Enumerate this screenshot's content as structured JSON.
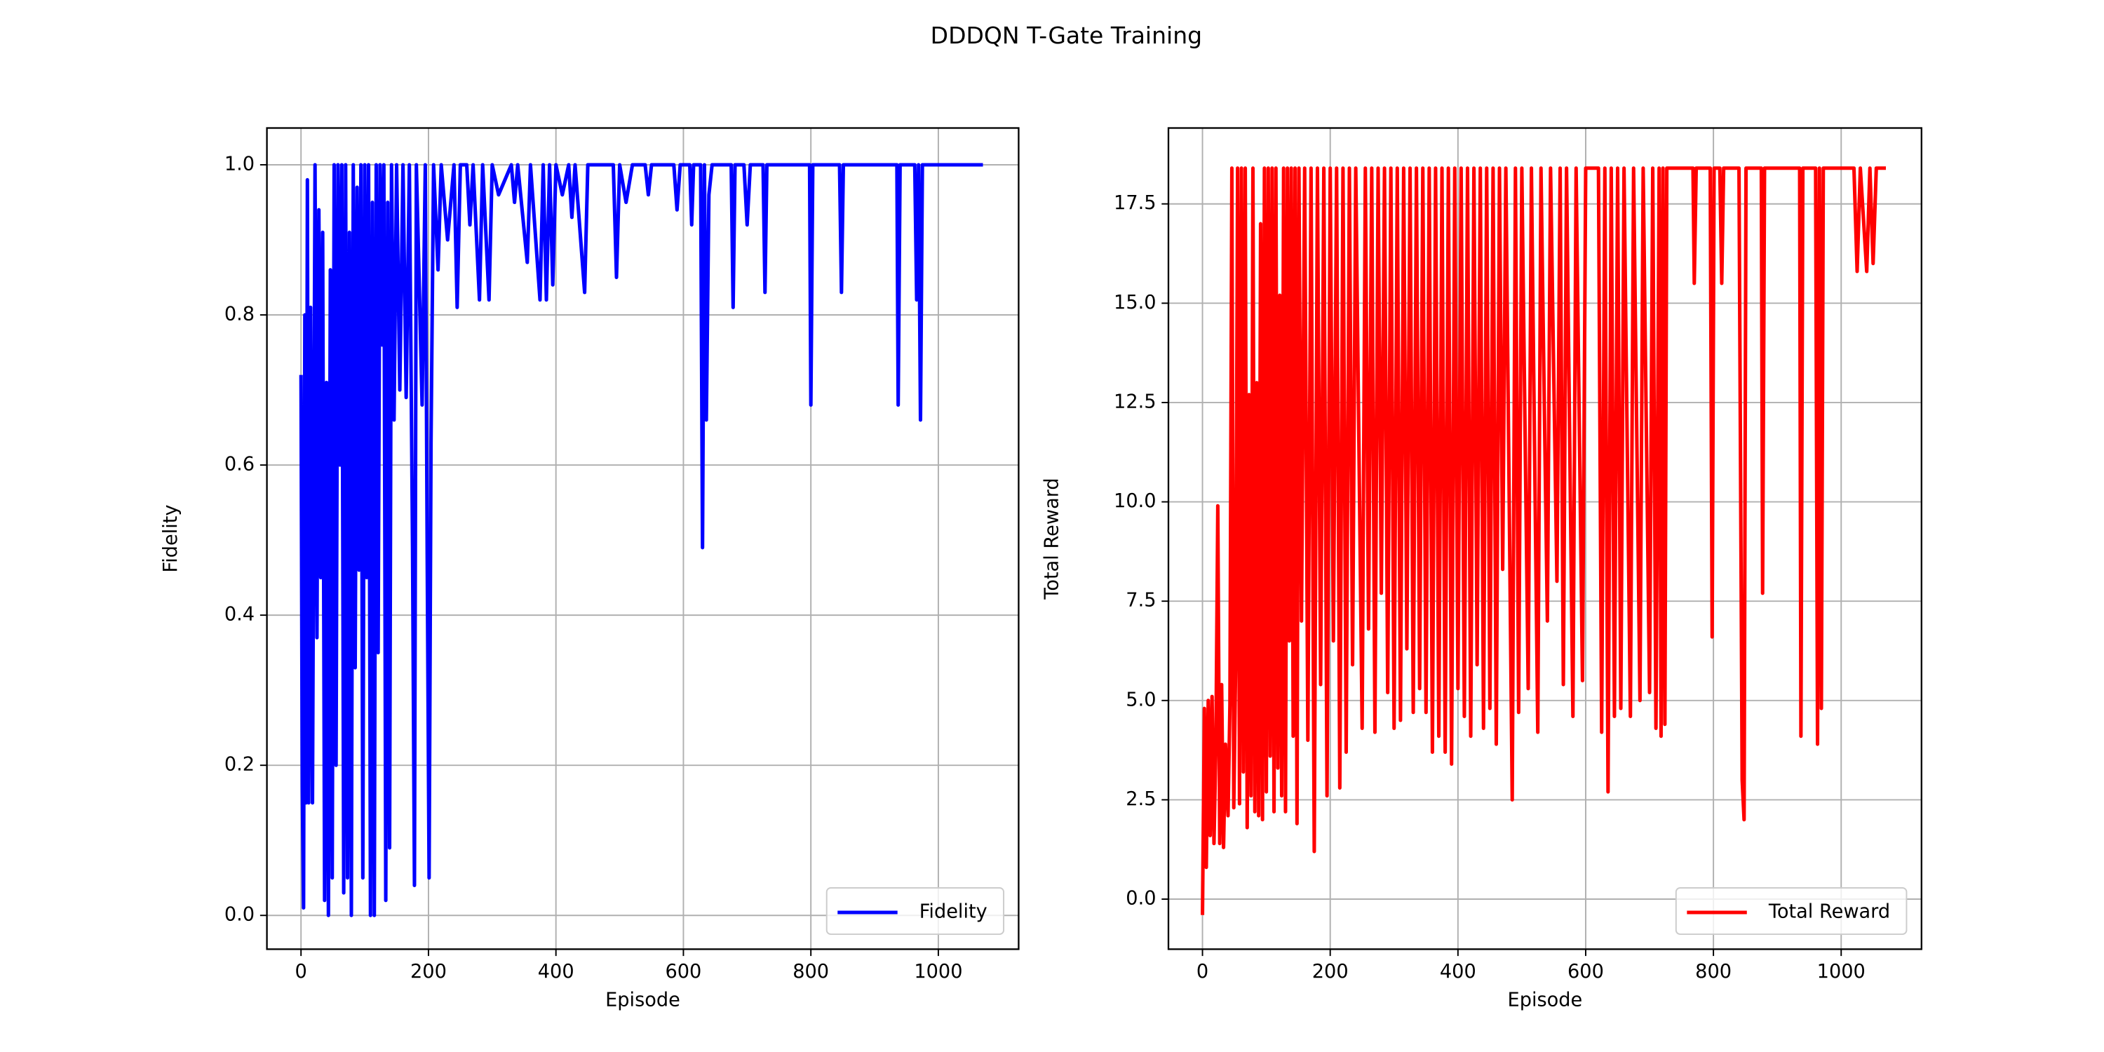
{
  "title": "DDDQN T-Gate Training",
  "chart_data": [
    {
      "type": "line",
      "xlabel": "Episode",
      "ylabel": "Fidelity",
      "xlim": [
        -53.5,
        1126
      ],
      "ylim": [
        -0.045,
        1.049
      ],
      "xticks": [
        0,
        200,
        400,
        600,
        800,
        1000
      ],
      "yticks": [
        {
          "value": 0,
          "label": "0.0"
        },
        0.2,
        0.4,
        0.6,
        0.8,
        {
          "value": 1,
          "label": "1.0"
        }
      ],
      "grid": true,
      "legend": "lower right",
      "x": [
        0,
        2,
        4,
        6,
        8,
        10,
        12,
        15,
        18,
        22,
        25,
        28,
        31,
        34,
        37,
        40,
        43,
        46,
        49,
        52,
        55,
        58,
        61,
        64,
        67,
        70,
        73,
        76,
        79,
        82,
        85,
        88,
        91,
        94,
        97,
        100,
        103,
        106,
        109,
        112,
        115,
        118,
        121,
        124,
        127,
        130,
        133,
        136,
        139,
        142,
        146,
        150,
        155,
        160,
        165,
        170,
        175,
        178,
        181,
        185,
        190,
        195,
        198,
        201,
        204,
        208,
        215,
        220,
        230,
        240,
        245,
        250,
        260,
        265,
        270,
        280,
        285,
        295,
        300,
        310,
        330,
        335,
        340,
        355,
        360,
        375,
        380,
        385,
        390,
        395,
        400,
        410,
        420,
        425,
        430,
        445,
        450,
        490,
        495,
        500,
        510,
        520,
        540,
        545,
        550,
        585,
        590,
        595,
        610,
        613,
        616,
        627,
        630,
        633,
        636,
        640,
        645,
        675,
        678,
        681,
        695,
        700,
        705,
        725,
        728,
        731,
        798,
        800,
        803,
        845,
        848,
        851,
        935,
        937,
        940,
        963,
        966,
        969,
        972,
        975,
        1070
      ],
      "series": [
        {
          "name": "Fidelity",
          "color": "#0000ff",
          "values": [
            0.72,
            0.17,
            0.01,
            0.8,
            0.15,
            0.98,
            0.15,
            0.81,
            0.15,
            1.0,
            0.37,
            0.94,
            0.45,
            0.91,
            0.02,
            0.71,
            0.0,
            0.86,
            0.05,
            1.0,
            0.2,
            1.0,
            0.6,
            1.0,
            0.03,
            1.0,
            0.05,
            0.91,
            0.0,
            1.0,
            0.33,
            0.97,
            0.46,
            1.0,
            0.05,
            1.0,
            0.45,
            1.0,
            0.0,
            0.95,
            0.0,
            1.0,
            0.35,
            1.0,
            0.76,
            1.0,
            0.02,
            0.95,
            0.09,
            1.0,
            0.66,
            1.0,
            0.7,
            1.0,
            0.69,
            1.0,
            0.49,
            0.04,
            1.0,
            0.86,
            0.68,
            1.0,
            0.48,
            0.05,
            0.63,
            1.0,
            0.86,
            1.0,
            0.9,
            1.0,
            0.81,
            1.0,
            1.0,
            0.92,
            1.0,
            0.82,
            1.0,
            0.82,
            1.0,
            0.96,
            1.0,
            0.95,
            1.0,
            0.87,
            1.0,
            0.82,
            1.0,
            0.82,
            1.0,
            0.84,
            1.0,
            0.96,
            1.0,
            0.93,
            1.0,
            0.83,
            1.0,
            1.0,
            0.85,
            1.0,
            0.95,
            1.0,
            1.0,
            0.96,
            1.0,
            1.0,
            0.94,
            1.0,
            1.0,
            0.92,
            1.0,
            1.0,
            0.49,
            1.0,
            0.66,
            0.96,
            1.0,
            1.0,
            0.81,
            1.0,
            1.0,
            0.92,
            1.0,
            1.0,
            0.83,
            1.0,
            1.0,
            0.68,
            1.0,
            1.0,
            0.83,
            1.0,
            1.0,
            0.68,
            1.0,
            1.0,
            0.82,
            1.0,
            0.66,
            1.0,
            1.0
          ]
        }
      ]
    },
    {
      "type": "line",
      "xlabel": "Episode",
      "ylabel": "Total Reward",
      "xlim": [
        -53.3,
        1125.8
      ],
      "ylim": [
        -1.26,
        19.41
      ],
      "xticks": [
        0,
        200,
        400,
        600,
        800,
        1000
      ],
      "yticks": [
        {
          "value": 0,
          "label": "0.0"
        },
        2.5,
        {
          "value": 5,
          "label": "5.0"
        },
        7.5,
        {
          "value": 10,
          "label": "10.0"
        },
        12.5,
        {
          "value": 15,
          "label": "15.0"
        },
        17.5
      ],
      "grid": true,
      "legend": "lower right",
      "x": [
        0,
        3,
        6,
        9,
        12,
        15,
        18,
        21,
        24,
        27,
        30,
        33,
        36,
        40,
        43,
        46,
        49,
        52,
        55,
        58,
        61,
        64,
        67,
        70,
        73,
        76,
        79,
        82,
        85,
        88,
        91,
        94,
        97,
        100,
        103,
        106,
        109,
        112,
        115,
        118,
        121,
        124,
        127,
        130,
        133,
        136,
        139,
        142,
        145,
        148,
        151,
        155,
        160,
        165,
        170,
        175,
        180,
        185,
        190,
        195,
        200,
        205,
        210,
        215,
        220,
        225,
        230,
        235,
        240,
        250,
        255,
        260,
        265,
        270,
        275,
        280,
        285,
        290,
        295,
        300,
        305,
        310,
        315,
        320,
        325,
        330,
        335,
        340,
        345,
        350,
        355,
        360,
        365,
        370,
        375,
        380,
        385,
        390,
        395,
        400,
        405,
        410,
        415,
        420,
        425,
        430,
        435,
        440,
        445,
        450,
        455,
        460,
        465,
        470,
        475,
        485,
        490,
        495,
        500,
        510,
        515,
        525,
        530,
        540,
        545,
        555,
        560,
        565,
        570,
        580,
        585,
        595,
        600,
        620,
        625,
        630,
        635,
        640,
        645,
        650,
        655,
        660,
        670,
        675,
        685,
        690,
        700,
        705,
        710,
        715,
        718,
        721,
        724,
        727,
        768,
        770,
        773,
        795,
        798,
        801,
        810,
        813,
        816,
        840,
        845,
        848,
        851,
        875,
        877,
        880,
        935,
        937,
        940,
        960,
        963,
        966,
        969,
        972,
        1020,
        1025,
        1030,
        1040,
        1045,
        1050,
        1055,
        1070
      ],
      "series": [
        {
          "name": "Total Reward",
          "color": "#ff0000",
          "values": [
            -0.4,
            4.8,
            0.8,
            5.0,
            1.6,
            5.1,
            1.4,
            3.9,
            9.9,
            1.4,
            5.4,
            1.3,
            3.9,
            2.1,
            4.9,
            18.4,
            2.3,
            6.0,
            18.4,
            2.4,
            18.4,
            3.2,
            18.4,
            1.8,
            12.7,
            2.6,
            18.4,
            2.2,
            13.0,
            2.1,
            17.0,
            2.0,
            18.4,
            2.7,
            18.4,
            3.6,
            18.4,
            2.2,
            18.4,
            3.3,
            15.2,
            2.6,
            18.4,
            2.2,
            18.4,
            6.5,
            18.4,
            4.1,
            18.4,
            1.9,
            18.4,
            7.0,
            18.4,
            4.0,
            18.4,
            1.2,
            18.4,
            5.4,
            18.4,
            2.6,
            18.4,
            6.5,
            18.4,
            2.8,
            18.4,
            3.7,
            18.4,
            5.9,
            18.4,
            4.3,
            18.4,
            6.8,
            18.4,
            4.2,
            18.4,
            7.7,
            18.4,
            5.2,
            18.4,
            4.3,
            18.4,
            4.5,
            18.4,
            6.3,
            18.4,
            4.7,
            18.4,
            5.3,
            18.4,
            4.7,
            18.4,
            3.7,
            18.4,
            4.1,
            18.4,
            3.7,
            18.4,
            3.4,
            18.4,
            5.3,
            18.4,
            4.6,
            18.4,
            4.1,
            18.4,
            5.9,
            18.4,
            4.3,
            18.4,
            4.8,
            18.4,
            3.9,
            18.4,
            8.3,
            18.4,
            2.5,
            18.4,
            4.7,
            18.4,
            5.3,
            18.4,
            4.2,
            18.4,
            7.0,
            18.4,
            8.0,
            18.4,
            5.4,
            18.4,
            4.6,
            18.4,
            5.5,
            18.4,
            18.4,
            4.2,
            18.4,
            2.7,
            18.4,
            4.6,
            18.4,
            4.8,
            18.4,
            4.6,
            18.4,
            5.0,
            18.4,
            5.2,
            18.4,
            4.3,
            18.4,
            4.1,
            18.4,
            4.4,
            18.4,
            18.4,
            15.5,
            18.4,
            18.4,
            6.6,
            18.4,
            18.4,
            15.5,
            18.4,
            18.4,
            3.0,
            2.0,
            18.4,
            18.4,
            7.7,
            18.4,
            18.4,
            4.1,
            18.4,
            18.4,
            3.9,
            18.4,
            4.8,
            18.4,
            18.4,
            15.8,
            18.4,
            15.8,
            18.4,
            16.0,
            18.4,
            18.4
          ]
        }
      ]
    }
  ]
}
